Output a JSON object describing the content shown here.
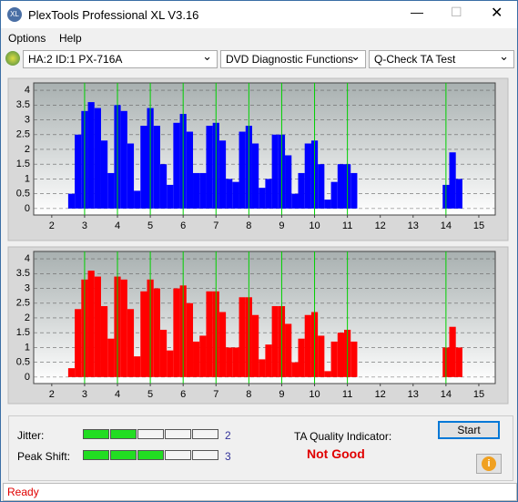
{
  "window": {
    "title": "PlexTools Professional XL V3.16",
    "menu": [
      "Options",
      "Help"
    ],
    "drive": "HA:2 ID:1  PX-716A",
    "function": "DVD Diagnostic Functions",
    "test": "Q-Check TA Test"
  },
  "chart_data": [
    {
      "type": "histogram",
      "color": "#0000ff",
      "marker_color": "#00d000",
      "bins": [
        2.5,
        2.7,
        2.9,
        3.1,
        3.3,
        3.5,
        3.7,
        3.9,
        4.1,
        4.3,
        4.5,
        4.7,
        4.9,
        5.1,
        5.3,
        5.5,
        5.7,
        5.9,
        6.1,
        6.3,
        6.5,
        6.7,
        6.9,
        7.1,
        7.3,
        7.5,
        7.7,
        7.9,
        8.1,
        8.3,
        8.5,
        8.7,
        8.9,
        9.1,
        9.3,
        9.5,
        9.7,
        9.9,
        10.1,
        10.3,
        10.5,
        10.7,
        10.9,
        11.1,
        11.3,
        11.5,
        11.7,
        11.9,
        12.1,
        12.3,
        12.5,
        12.7,
        12.9,
        13.1,
        13.3,
        13.5,
        13.7,
        13.9,
        14.1,
        14.3,
        14.5
      ],
      "values": [
        0.5,
        2.5,
        3.3,
        3.6,
        3.4,
        2.3,
        1.2,
        3.5,
        3.3,
        2.2,
        0.6,
        2.8,
        3.4,
        2.8,
        1.5,
        0.8,
        2.9,
        3.2,
        2.6,
        1.2,
        1.2,
        2.8,
        2.9,
        2.3,
        1.0,
        0.9,
        2.6,
        2.8,
        2.2,
        0.7,
        1.0,
        2.5,
        2.5,
        1.8,
        0.5,
        1.2,
        2.2,
        2.3,
        1.5,
        0.3,
        0.9,
        1.5,
        1.5,
        1.2,
        0,
        0,
        0,
        0,
        0,
        0,
        0,
        0,
        0,
        0,
        0,
        0,
        0,
        0.8,
        1.9,
        1.0
      ],
      "markers": [
        3,
        4,
        5,
        6,
        7,
        8,
        9,
        10,
        11,
        14
      ],
      "xlim": [
        1.45,
        15.5
      ],
      "xticks": [
        2,
        3,
        4,
        5,
        6,
        7,
        8,
        9,
        10,
        11,
        12,
        13,
        14,
        15
      ],
      "ylim": [
        -0.22,
        4.25
      ],
      "yticks": [
        0,
        0.5,
        1,
        1.5,
        2,
        2.5,
        3,
        3.5,
        4
      ],
      "grid": true
    },
    {
      "type": "histogram",
      "color": "#ff0000",
      "marker_color": "#00d000",
      "bins": [
        2.5,
        2.7,
        2.9,
        3.1,
        3.3,
        3.5,
        3.7,
        3.9,
        4.1,
        4.3,
        4.5,
        4.7,
        4.9,
        5.1,
        5.3,
        5.5,
        5.7,
        5.9,
        6.1,
        6.3,
        6.5,
        6.7,
        6.9,
        7.1,
        7.3,
        7.5,
        7.7,
        7.9,
        8.1,
        8.3,
        8.5,
        8.7,
        8.9,
        9.1,
        9.3,
        9.5,
        9.7,
        9.9,
        10.1,
        10.3,
        10.5,
        10.7,
        10.9,
        11.1,
        11.3,
        11.5,
        11.7,
        11.9,
        12.1,
        12.3,
        12.5,
        12.7,
        12.9,
        13.1,
        13.3,
        13.5,
        13.7,
        13.9,
        14.1,
        14.3,
        14.5
      ],
      "values": [
        0.3,
        2.3,
        3.3,
        3.6,
        3.4,
        2.4,
        1.3,
        3.4,
        3.3,
        2.3,
        0.7,
        2.9,
        3.3,
        3.0,
        1.6,
        0.9,
        3.0,
        3.1,
        2.5,
        1.2,
        1.4,
        2.9,
        2.9,
        2.2,
        1.0,
        1.0,
        2.7,
        2.7,
        2.1,
        0.6,
        1.1,
        2.4,
        2.4,
        1.8,
        0.5,
        1.3,
        2.1,
        2.2,
        1.4,
        0.2,
        1.2,
        1.5,
        1.6,
        1.2,
        0,
        0,
        0,
        0,
        0,
        0,
        0,
        0,
        0,
        0,
        0,
        0,
        0,
        1.0,
        1.7,
        1.0
      ],
      "markers": [
        3,
        4,
        5,
        6,
        7,
        8,
        9,
        10,
        11,
        14
      ],
      "xlim": [
        1.45,
        15.5
      ],
      "xticks": [
        2,
        3,
        4,
        5,
        6,
        7,
        8,
        9,
        10,
        11,
        12,
        13,
        14,
        15
      ],
      "ylim": [
        -0.22,
        4.25
      ],
      "yticks": [
        0,
        0.5,
        1,
        1.5,
        2,
        2.5,
        3,
        3.5,
        4
      ],
      "grid": true
    }
  ],
  "indicators": [
    {
      "label": "Jitter:",
      "value": 2
    },
    {
      "label": "Peak Shift:",
      "value": 3
    }
  ],
  "quality": {
    "label": "TA Quality Indicator:",
    "result": "Not Good"
  },
  "start": "Start",
  "status": "Ready"
}
